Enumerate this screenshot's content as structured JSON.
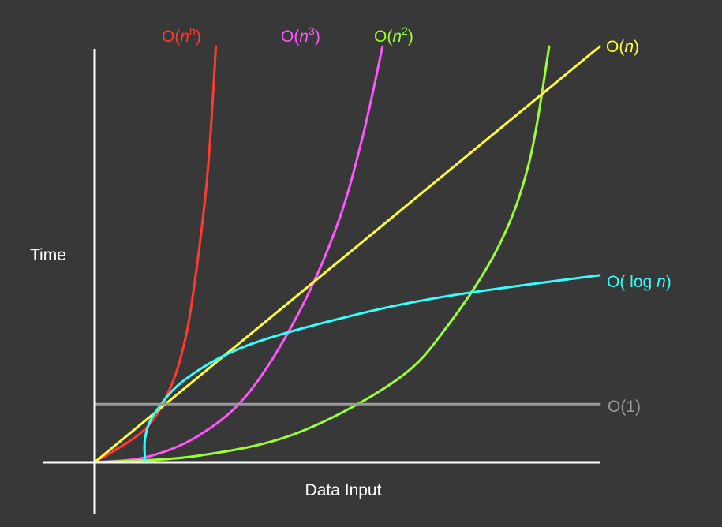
{
  "chart_data": {
    "type": "line",
    "title": "",
    "xlabel": "Data Input",
    "ylabel": "Time",
    "grid": false,
    "legend": "none",
    "series": [
      {
        "key": "on",
        "color": "#ff3b30",
        "label": {
          "pre": "O(",
          "var": "n",
          "sup": "n",
          "post": ")"
        },
        "points": [
          [
            0.0,
            0.0
          ],
          [
            0.1,
            0.08
          ],
          [
            0.15,
            0.18
          ],
          [
            0.18,
            0.3
          ],
          [
            0.2,
            0.45
          ],
          [
            0.22,
            0.65
          ],
          [
            0.23,
            0.8
          ],
          [
            0.24,
            1.0
          ]
        ]
      },
      {
        "key": "o3",
        "color": "#ff55ff",
        "label": {
          "pre": "O(",
          "var": "n",
          "sup": "3",
          "post": ")"
        },
        "points": [
          [
            0.0,
            0.0
          ],
          [
            0.1,
            0.012
          ],
          [
            0.2,
            0.06
          ],
          [
            0.3,
            0.16
          ],
          [
            0.4,
            0.35
          ],
          [
            0.48,
            0.57
          ],
          [
            0.53,
            0.78
          ],
          [
            0.57,
            1.0
          ]
        ]
      },
      {
        "key": "o2",
        "color": "#99ff33",
        "label": {
          "pre": "O(",
          "var": "n",
          "sup": "2",
          "post": ")"
        },
        "points": [
          [
            0.0,
            0.0
          ],
          [
            0.2,
            0.015
          ],
          [
            0.4,
            0.07
          ],
          [
            0.6,
            0.2
          ],
          [
            0.7,
            0.33
          ],
          [
            0.8,
            0.52
          ],
          [
            0.86,
            0.72
          ],
          [
            0.9,
            1.0
          ]
        ]
      },
      {
        "key": "o1n",
        "color": "#ffff33",
        "label": {
          "pre": "O(",
          "var": "n",
          "sup": "",
          "post": ")"
        },
        "points": [
          [
            0.0,
            0.0
          ],
          [
            1.0,
            1.0
          ]
        ]
      },
      {
        "key": "olog",
        "color": "#33ffff",
        "label": {
          "pre": "O( log ",
          "var": "n",
          "sup": "",
          "post": ")"
        },
        "points": [
          [
            0.1,
            0.0
          ],
          [
            0.1,
            0.06
          ],
          [
            0.12,
            0.12
          ],
          [
            0.18,
            0.2
          ],
          [
            0.3,
            0.28
          ],
          [
            0.5,
            0.35
          ],
          [
            0.7,
            0.4
          ],
          [
            1.0,
            0.45
          ]
        ]
      },
      {
        "key": "oc",
        "color": "#9a9a9a",
        "label": {
          "pre": "O(1)",
          "var": "",
          "sup": "",
          "post": ""
        },
        "points": [
          [
            0.0,
            0.14
          ],
          [
            1.0,
            0.14
          ]
        ]
      }
    ]
  }
}
